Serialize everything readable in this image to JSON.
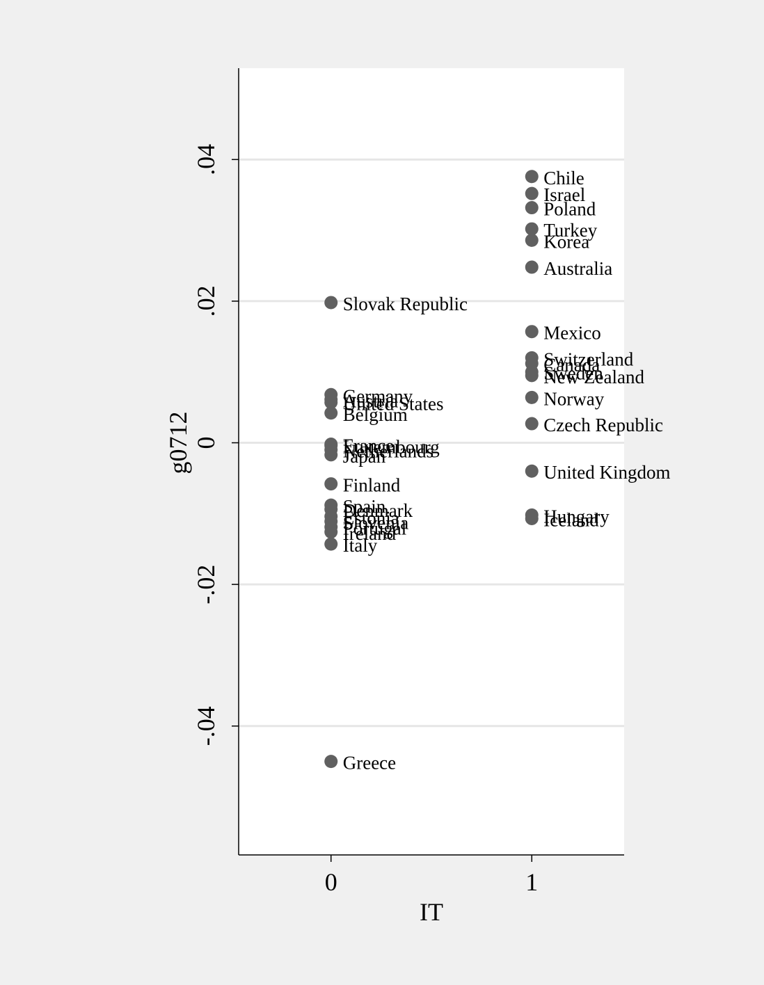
{
  "chart_data": {
    "type": "scatter",
    "title": "",
    "xlabel": "IT",
    "ylabel": "g0712",
    "xlim": [
      -0.46,
      1.46
    ],
    "ylim": [
      -0.0582,
      0.0529
    ],
    "x_ticks": [
      0,
      1
    ],
    "x_tick_labels": [
      "0",
      "1"
    ],
    "y_ticks": [
      -0.04,
      -0.02,
      0,
      0.02,
      0.04
    ],
    "y_tick_labels": [
      "-.04",
      "-.02",
      "0",
      ".02",
      ".04"
    ],
    "grid": true,
    "legend": "none",
    "colors": {
      "outer_background": "#f0f0f0",
      "plot_background": "#ffffff",
      "gridline": "#e6e6e6",
      "marker": "#606060",
      "axis": "#000000",
      "text": "#000000"
    },
    "points": [
      {
        "label": "Chile",
        "x": 1,
        "y": 0.0376
      },
      {
        "label": "Israel",
        "x": 1,
        "y": 0.0352
      },
      {
        "label": "Poland",
        "x": 1,
        "y": 0.0332
      },
      {
        "label": "Turkey",
        "x": 1,
        "y": 0.0302
      },
      {
        "label": "Korea",
        "x": 1,
        "y": 0.0286
      },
      {
        "label": "Australia",
        "x": 1,
        "y": 0.0248
      },
      {
        "label": "Mexico",
        "x": 1,
        "y": 0.0157
      },
      {
        "label": "Switzerland",
        "x": 1,
        "y": 0.012
      },
      {
        "label": "Canada",
        "x": 1,
        "y": 0.0112
      },
      {
        "label": "Sweden",
        "x": 1,
        "y": 0.01
      },
      {
        "label": "New Zealand",
        "x": 1,
        "y": 0.0095
      },
      {
        "label": "Norway",
        "x": 1,
        "y": 0.0064
      },
      {
        "label": "Czech Republic",
        "x": 1,
        "y": 0.0027
      },
      {
        "label": "United Kingdom",
        "x": 1,
        "y": -0.004
      },
      {
        "label": "Hungary",
        "x": 1,
        "y": -0.0102
      },
      {
        "label": "Iceland",
        "x": 1,
        "y": -0.0107
      },
      {
        "label": "Slovak Republic",
        "x": 0,
        "y": 0.0198
      },
      {
        "label": "Germany",
        "x": 0,
        "y": 0.0068
      },
      {
        "label": "Austria",
        "x": 0,
        "y": 0.0061
      },
      {
        "label": "United States",
        "x": 0,
        "y": 0.0057
      },
      {
        "label": "Belgium",
        "x": 0,
        "y": 0.0042
      },
      {
        "label": "France",
        "x": 0,
        "y": -0.0002
      },
      {
        "label": "Luxembourg",
        "x": 0,
        "y": -0.0004
      },
      {
        "label": "Netherlands",
        "x": 0,
        "y": -0.001
      },
      {
        "label": "Japan",
        "x": 0,
        "y": -0.0017
      },
      {
        "label": "Finland",
        "x": 0,
        "y": -0.0058
      },
      {
        "label": "Spain",
        "x": 0,
        "y": -0.0088
      },
      {
        "label": "Denmark",
        "x": 0,
        "y": -0.0094
      },
      {
        "label": "Estonia",
        "x": 0,
        "y": -0.0104
      },
      {
        "label": "Slovenia",
        "x": 0,
        "y": -0.0111
      },
      {
        "label": "Portugal",
        "x": 0,
        "y": -0.0119
      },
      {
        "label": "Ireland",
        "x": 0,
        "y": -0.0126
      },
      {
        "label": "Italy",
        "x": 0,
        "y": -0.0143
      },
      {
        "label": "Greece",
        "x": 0,
        "y": -0.045
      }
    ]
  }
}
